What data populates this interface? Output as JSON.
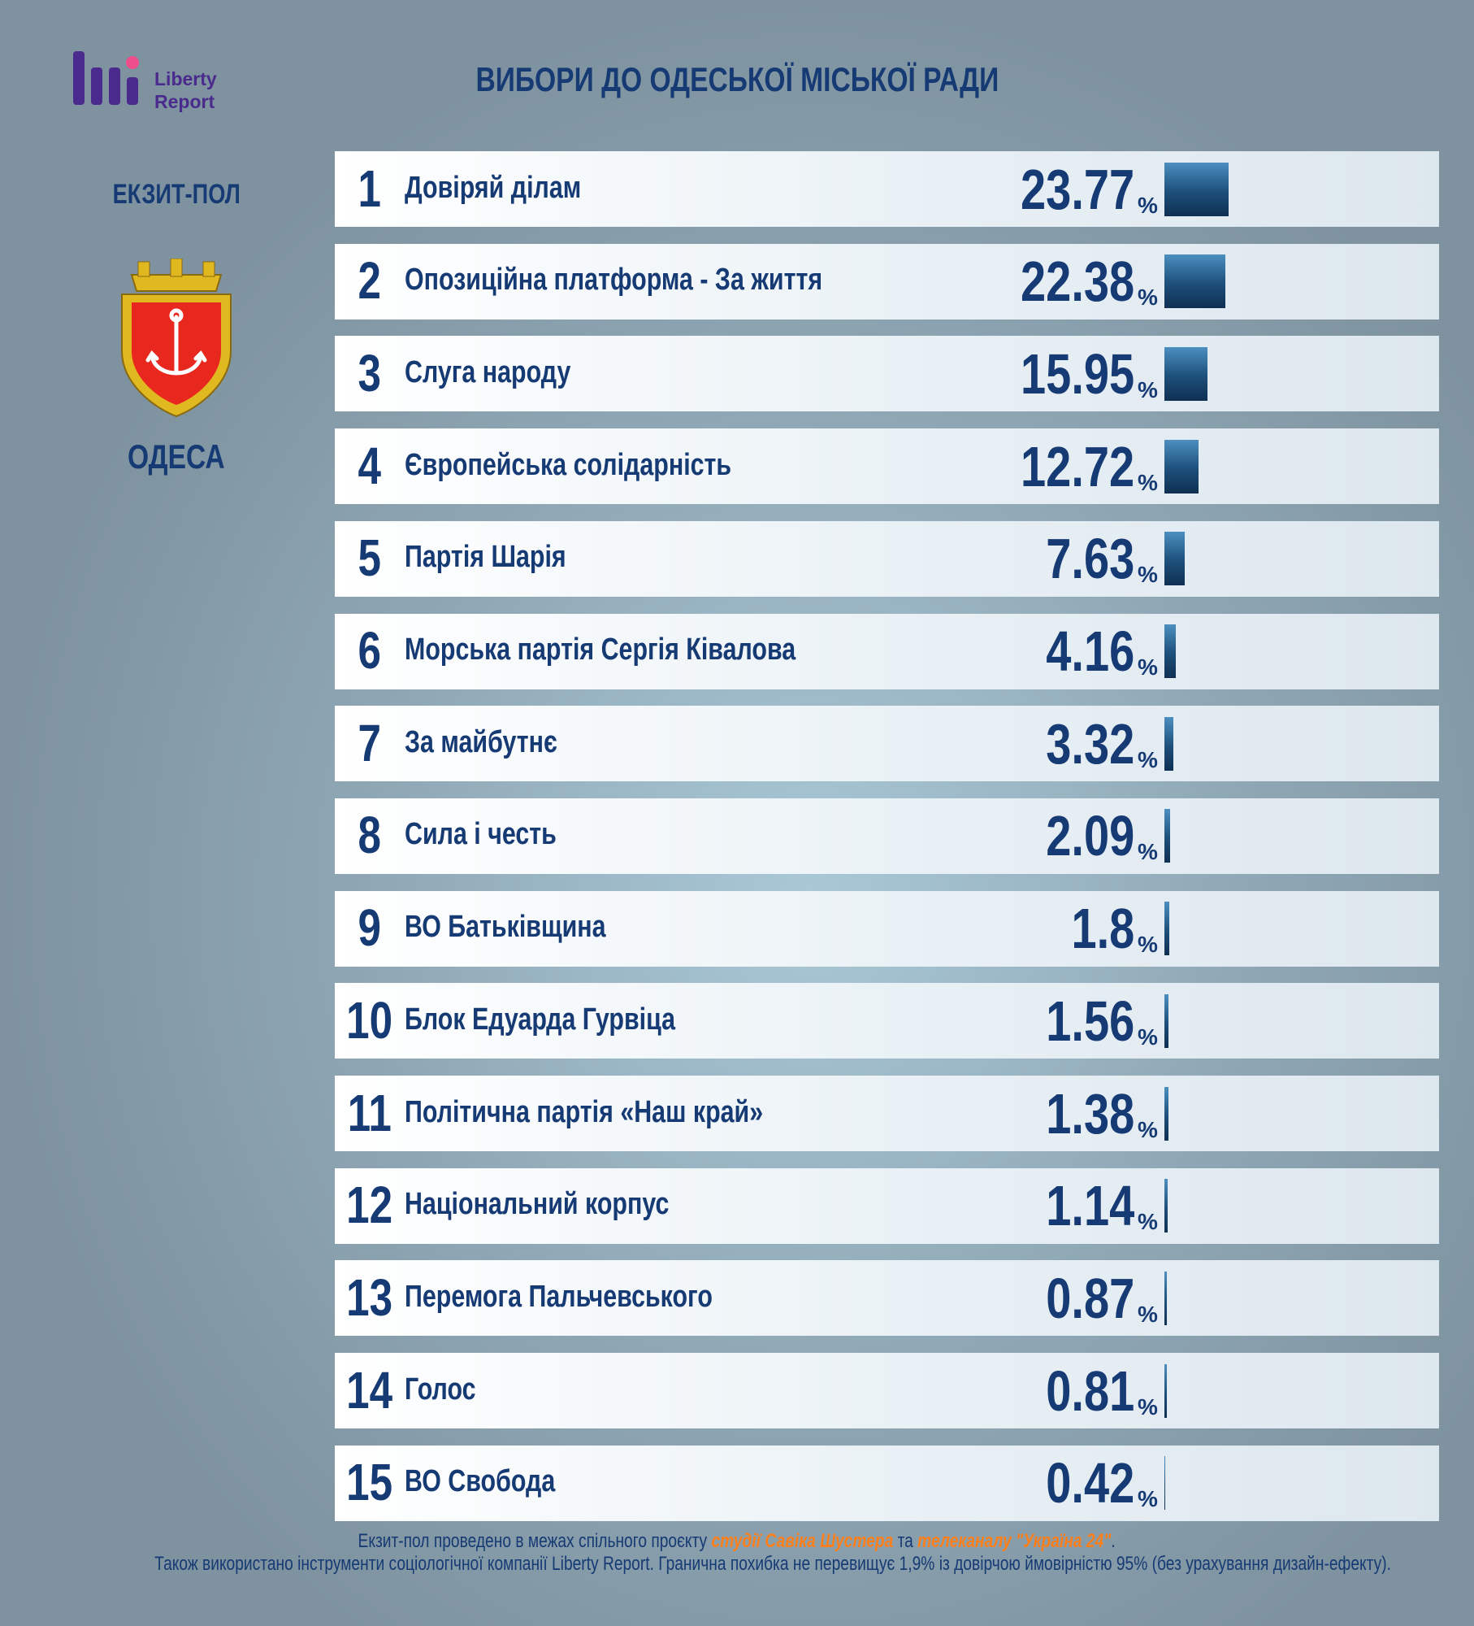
{
  "logo": {
    "line1": "Liberty",
    "line2": "Report"
  },
  "chart_data": {
    "type": "bar",
    "title": "ВИБОРИ ДО ОДЕСЬКОЇ МІСЬКОЇ РАДИ",
    "subtitle": "ЕКЗИТ-ПОЛ",
    "city": "ОДЕСА",
    "ranks": [
      1,
      2,
      3,
      4,
      5,
      6,
      7,
      8,
      9,
      10,
      11,
      12,
      13,
      14,
      15
    ],
    "categories": [
      "Довіряй ділам",
      "Опозиційна платформа - За життя",
      "Слуга народу",
      "Європейська солідарність",
      "Партія Шарія",
      "Морська партія Сергія Ківалова",
      "За майбутнє",
      "Сила і честь",
      "ВО Батьківщина",
      "Блок Едуарда Гурвіца",
      "Політична партія «Наш край»",
      "Національний корпус",
      "Перемога Пальчевського",
      "Голос",
      "ВО Свобода"
    ],
    "values": [
      23.77,
      22.38,
      15.95,
      12.72,
      7.63,
      4.16,
      3.32,
      2.09,
      1.8,
      1.56,
      1.38,
      1.14,
      0.87,
      0.81,
      0.42
    ],
    "unit": "%",
    "color": "#1d4f7a"
  },
  "footer": {
    "line1_a": "Екзит-пол проведено в межах спільного проєкту ",
    "line1_b": "студії Савіка Шустера",
    "line1_c": " та ",
    "line1_d": "телеканалу \"Україна 24\"",
    "line1_e": ".",
    "line2": "Також використано інструменти соціологічної компанії Liberty Report. Гранична похибка не перевищує 1,9% із довірчою ймовірністю 95% (без урахування дизайн-ефекту)."
  }
}
